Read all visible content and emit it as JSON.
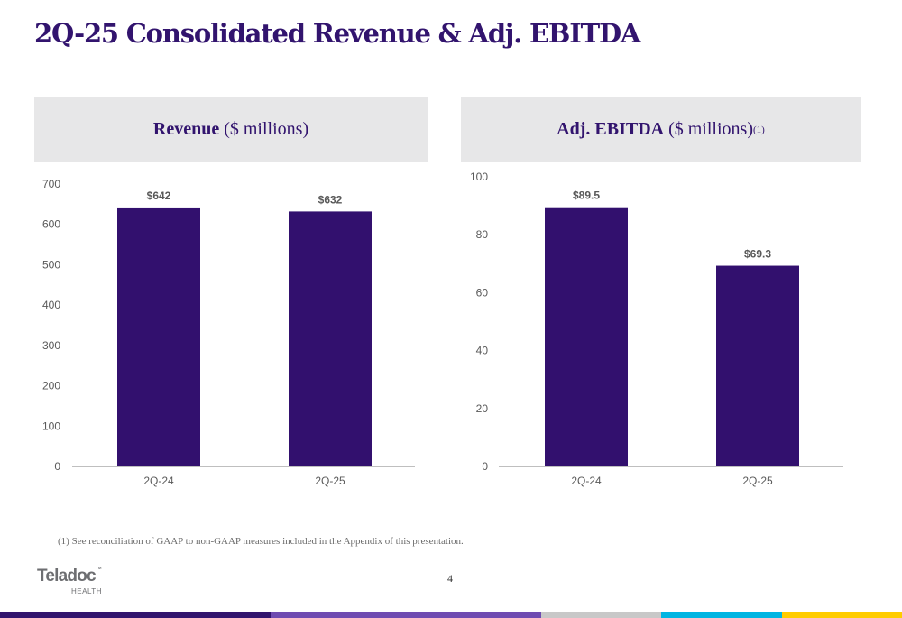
{
  "title": "2Q-25 Consolidated Revenue & Adj. EBITDA",
  "panels": {
    "revenue": {
      "bold": "Revenue",
      "light": "($ millions)",
      "sup": ""
    },
    "ebitda": {
      "bold": "Adj. EBITDA",
      "light": "($ millions)",
      "sup": "(1)"
    }
  },
  "chart_data": [
    {
      "type": "bar",
      "title": "Revenue ($ millions)",
      "categories": [
        "2Q-24",
        "2Q-25"
      ],
      "values": [
        642,
        632
      ],
      "data_labels": [
        "$642",
        "$632"
      ],
      "ylim": [
        0,
        700
      ],
      "yticks": [
        0,
        100,
        200,
        300,
        400,
        500,
        600,
        700
      ],
      "grid": false,
      "color": "#32106e"
    },
    {
      "type": "bar",
      "title": "Adj. EBITDA ($ millions)(1)",
      "categories": [
        "2Q-24",
        "2Q-25"
      ],
      "values": [
        89.5,
        69.3
      ],
      "data_labels": [
        "$89.5",
        "$69.3"
      ],
      "ylim": [
        0,
        100
      ],
      "yticks": [
        0,
        20,
        40,
        60,
        80,
        100
      ],
      "grid": false,
      "color": "#32106e"
    }
  ],
  "footnote": "(1) See reconciliation of GAAP to non-GAAP measures included in the Appendix of this presentation.",
  "page_number": "4",
  "logo": {
    "name": "Teladoc",
    "sub": "HEALTH",
    "tm": "™"
  },
  "colors": {
    "brand_purple": "#32146e",
    "stripe": [
      "#32146e",
      "#6f4bb1",
      "#c8c8c8",
      "#00b5e2",
      "#ffcc00"
    ]
  }
}
